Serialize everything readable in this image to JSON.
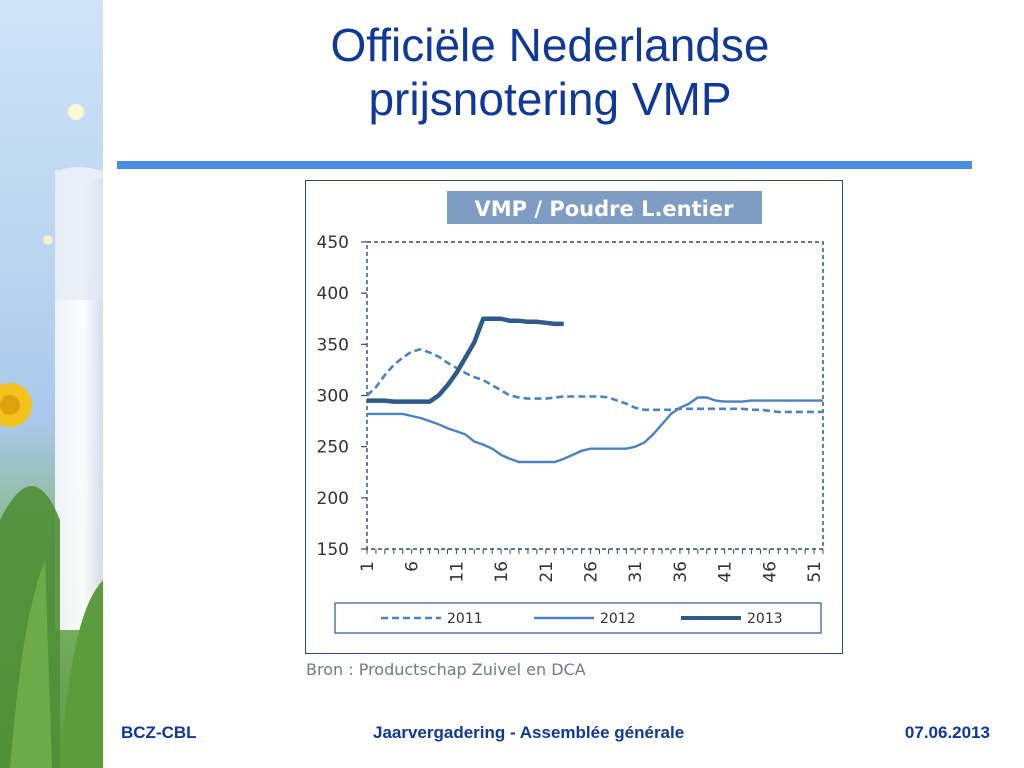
{
  "slide": {
    "title_line1": "Officiële Nederlandse",
    "title_line2": "prijsnotering VMP",
    "source": "Bron : Productschap Zuivel en DCA"
  },
  "footer": {
    "left": "BCZ-CBL",
    "center": "Jaarvergadering  -  Assemblée générale",
    "right": "07.06.2013"
  },
  "colors": {
    "title": "#10389a",
    "rule": "#4a8be3",
    "series_light": "#4a82c4",
    "series_dark": "#2f5a8c",
    "chart_title_bg": "#7f9cc4"
  },
  "chart_data": {
    "type": "line",
    "title": "VMP / Poudre L.entier",
    "xlabel": "",
    "ylabel": "",
    "xlim": [
      1,
      52
    ],
    "ylim": [
      150,
      450
    ],
    "x_ticks": [
      1,
      6,
      11,
      16,
      21,
      26,
      31,
      36,
      41,
      46,
      51
    ],
    "y_ticks": [
      150,
      200,
      250,
      300,
      350,
      400,
      450
    ],
    "legend_position": "bottom",
    "grid": false,
    "series": [
      {
        "name": "2011",
        "style": "dashed",
        "x": [
          1,
          2,
          3,
          4,
          5,
          6,
          7,
          8,
          9,
          10,
          11,
          12,
          13,
          14,
          15,
          16,
          17,
          18,
          19,
          20,
          21,
          22,
          23,
          24,
          25,
          26,
          27,
          28,
          29,
          30,
          31,
          32,
          33,
          34,
          35,
          36,
          37,
          38,
          39,
          40,
          41,
          42,
          43,
          44,
          45,
          46,
          47,
          48,
          49,
          50,
          51,
          52
        ],
        "values": [
          300,
          308,
          320,
          330,
          337,
          343,
          345,
          342,
          338,
          332,
          327,
          322,
          318,
          315,
          310,
          305,
          300,
          298,
          297,
          297,
          297,
          298,
          299,
          299,
          299,
          299,
          299,
          298,
          295,
          292,
          288,
          286,
          286,
          286,
          286,
          287,
          287,
          287,
          287,
          287,
          287,
          287,
          287,
          286,
          286,
          285,
          284,
          284,
          284,
          284,
          284,
          284
        ]
      },
      {
        "name": "2012",
        "style": "solid",
        "x": [
          1,
          2,
          3,
          4,
          5,
          6,
          7,
          8,
          9,
          10,
          11,
          12,
          13,
          14,
          15,
          16,
          17,
          18,
          19,
          20,
          21,
          22,
          23,
          24,
          25,
          26,
          27,
          28,
          29,
          30,
          31,
          32,
          33,
          34,
          35,
          36,
          37,
          38,
          39,
          40,
          41,
          42,
          43,
          44,
          45,
          46,
          47,
          48,
          49,
          50,
          51,
          52
        ],
        "values": [
          282,
          282,
          282,
          282,
          282,
          280,
          278,
          275,
          272,
          268,
          265,
          262,
          255,
          252,
          248,
          242,
          238,
          235,
          235,
          235,
          235,
          235,
          238,
          242,
          246,
          248,
          248,
          248,
          248,
          248,
          250,
          254,
          262,
          272,
          282,
          288,
          292,
          298,
          298,
          295,
          294,
          294,
          294,
          295,
          295,
          295,
          295,
          295,
          295,
          295,
          295,
          295
        ]
      },
      {
        "name": "2013",
        "style": "thick",
        "x": [
          1,
          2,
          3,
          4,
          5,
          6,
          7,
          8,
          9,
          10,
          11,
          12,
          13,
          14,
          15,
          16,
          17,
          18,
          19,
          20,
          21,
          22,
          23
        ],
        "values": [
          295,
          295,
          295,
          294,
          294,
          294,
          294,
          294,
          300,
          310,
          322,
          337,
          352,
          375,
          375,
          375,
          373,
          373,
          372,
          372,
          371,
          370,
          370
        ]
      }
    ]
  }
}
